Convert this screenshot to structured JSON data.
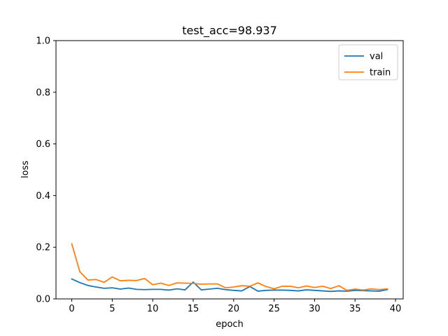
{
  "chart_data": {
    "type": "line",
    "title": "test_acc=98.937",
    "xlabel": "epoch",
    "ylabel": "loss",
    "xlim": [
      -1.95,
      40.95
    ],
    "ylim": [
      0.0,
      1.0
    ],
    "xticks": [
      0,
      5,
      10,
      15,
      20,
      25,
      30,
      35,
      40
    ],
    "yticks": [
      0.0,
      0.2,
      0.4,
      0.6,
      0.8,
      1.0
    ],
    "xtick_labels": [
      "0",
      "5",
      "10",
      "15",
      "20",
      "25",
      "30",
      "35",
      "40"
    ],
    "ytick_labels": [
      "0.0",
      "0.2",
      "0.4",
      "0.6",
      "0.8",
      "1.0"
    ],
    "grid": false,
    "legend_position": "top-right",
    "x": [
      0,
      1,
      2,
      3,
      4,
      5,
      6,
      7,
      8,
      9,
      10,
      11,
      12,
      13,
      14,
      15,
      16,
      17,
      18,
      19,
      20,
      21,
      22,
      23,
      24,
      25,
      26,
      27,
      28,
      29,
      30,
      31,
      32,
      33,
      34,
      35,
      36,
      37,
      38,
      39
    ],
    "series": [
      {
        "name": "val",
        "color": "#1f77b4",
        "values": [
          0.077,
          0.063,
          0.052,
          0.046,
          0.041,
          0.043,
          0.038,
          0.042,
          0.037,
          0.036,
          0.037,
          0.037,
          0.034,
          0.039,
          0.035,
          0.065,
          0.035,
          0.038,
          0.041,
          0.036,
          0.033,
          0.031,
          0.048,
          0.03,
          0.033,
          0.034,
          0.034,
          0.033,
          0.031,
          0.035,
          0.033,
          0.031,
          0.029,
          0.031,
          0.03,
          0.033,
          0.032,
          0.031,
          0.03,
          0.036
        ]
      },
      {
        "name": "train",
        "color": "#ff7f0e",
        "values": [
          0.213,
          0.105,
          0.073,
          0.075,
          0.064,
          0.085,
          0.07,
          0.072,
          0.071,
          0.079,
          0.055,
          0.061,
          0.052,
          0.062,
          0.061,
          0.06,
          0.057,
          0.058,
          0.058,
          0.043,
          0.046,
          0.051,
          0.049,
          0.062,
          0.048,
          0.039,
          0.049,
          0.049,
          0.043,
          0.05,
          0.044,
          0.049,
          0.04,
          0.051,
          0.033,
          0.038,
          0.034,
          0.039,
          0.036,
          0.039
        ]
      }
    ]
  }
}
